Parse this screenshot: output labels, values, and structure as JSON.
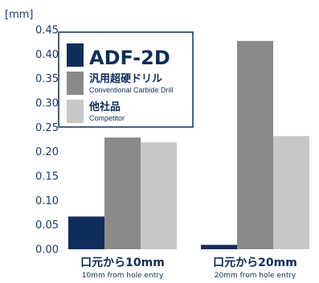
{
  "chart_data": {
    "type": "bar",
    "unit_label": "[mm]",
    "ylim": [
      0,
      0.45
    ],
    "yticks": [
      "0.00",
      "0.05",
      "0.10",
      "0.15",
      "0.20",
      "0.25",
      "0.30",
      "0.35",
      "0.40",
      "0.45"
    ],
    "categories": [
      {
        "label": "口元から10mm",
        "sublabel": "10mm from hole entry"
      },
      {
        "label": "口元から20mm",
        "sublabel": "20mm from hole entry"
      }
    ],
    "series": [
      {
        "name": "ADF-2D",
        "color": "#0f2d59",
        "values": [
          0.067,
          0.009
        ]
      },
      {
        "name": "汎用超硬ドリル",
        "subname": "Conventional Carbide Drill",
        "color": "#8a8a8a",
        "values": [
          0.229,
          0.427
        ]
      },
      {
        "name": "他社品",
        "subname": "Competitor",
        "color": "#c8c8c8",
        "values": [
          0.219,
          0.232
        ]
      }
    ],
    "grid": false,
    "legend_position": "top-left"
  }
}
